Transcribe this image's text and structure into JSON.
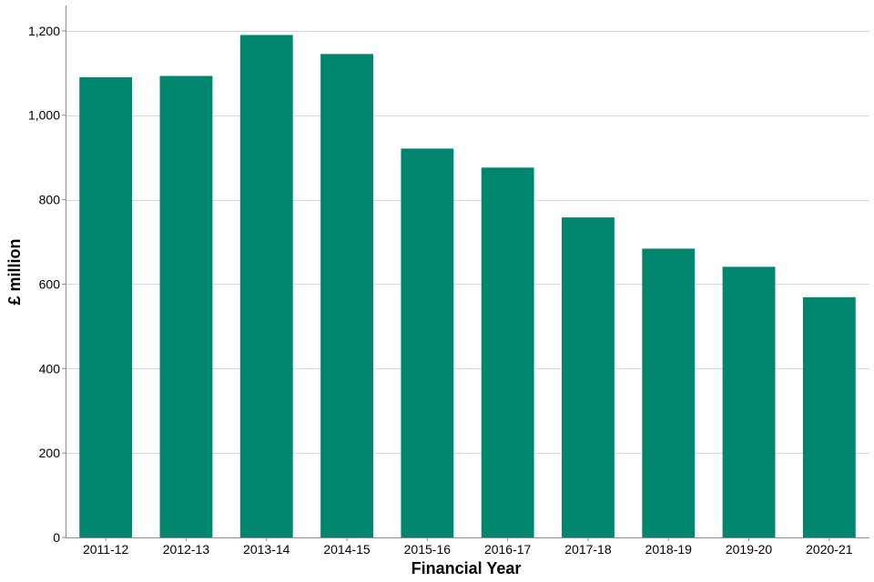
{
  "chart_data": {
    "type": "bar",
    "title": "",
    "xlabel": "Financial Year",
    "ylabel": "£ million",
    "categories": [
      "2011-12",
      "2012-13",
      "2013-14",
      "2014-15",
      "2015-16",
      "2016-17",
      "2017-18",
      "2018-19",
      "2019-20",
      "2020-21"
    ],
    "values": [
      1090,
      1093,
      1190,
      1145,
      921,
      876,
      758,
      684,
      641,
      569
    ],
    "ylim": [
      0,
      1260
    ],
    "yticks": [
      0,
      200,
      400,
      600,
      800,
      1000,
      1200
    ],
    "ytick_labels": [
      "0",
      "200",
      "400",
      "600",
      "800",
      "1,000",
      "1,200"
    ],
    "grid": true,
    "legend": "none",
    "colors": {
      "bar": "#00856F",
      "grid": "#D9D9D9",
      "axis": "#8C8C8C"
    }
  }
}
